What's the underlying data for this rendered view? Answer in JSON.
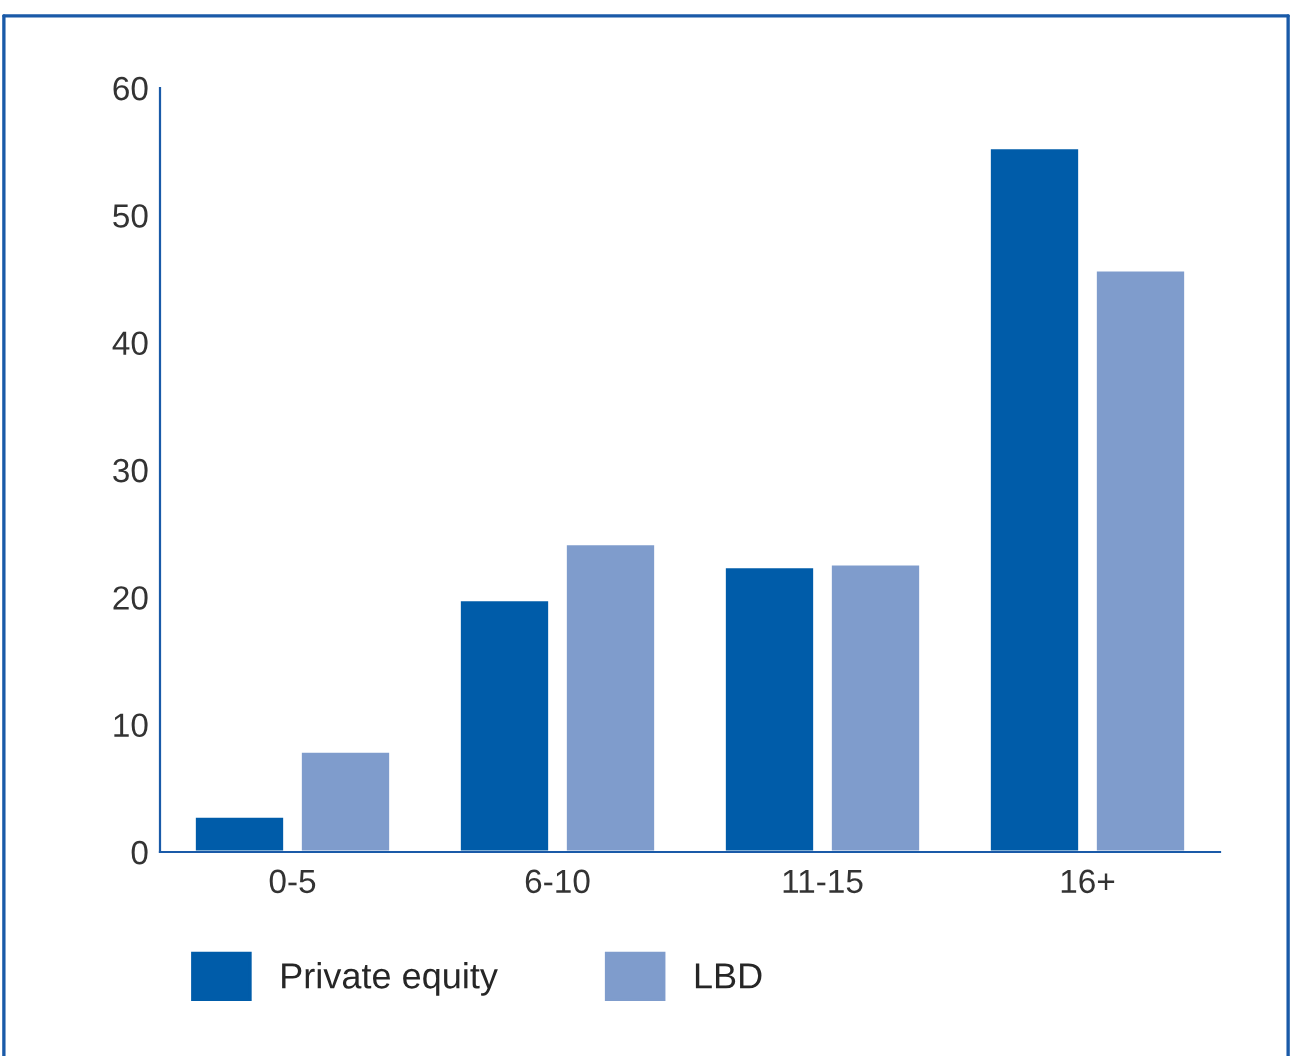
{
  "chart_data": {
    "type": "bar",
    "categories": [
      "0-5",
      "6-10",
      "11-15",
      "16+"
    ],
    "series": [
      {
        "name": "Private equity",
        "color": "#005ca9",
        "values": [
          2.8,
          19.8,
          22.4,
          55.3
        ]
      },
      {
        "name": "LBD",
        "color": "#7f9ccc",
        "values": [
          7.9,
          24.2,
          22.6,
          45.7
        ]
      }
    ],
    "ylim": [
      0,
      60
    ],
    "yticks": [
      0,
      10,
      20,
      30,
      40,
      50,
      60
    ],
    "grid": false,
    "legend": "bottom left"
  }
}
